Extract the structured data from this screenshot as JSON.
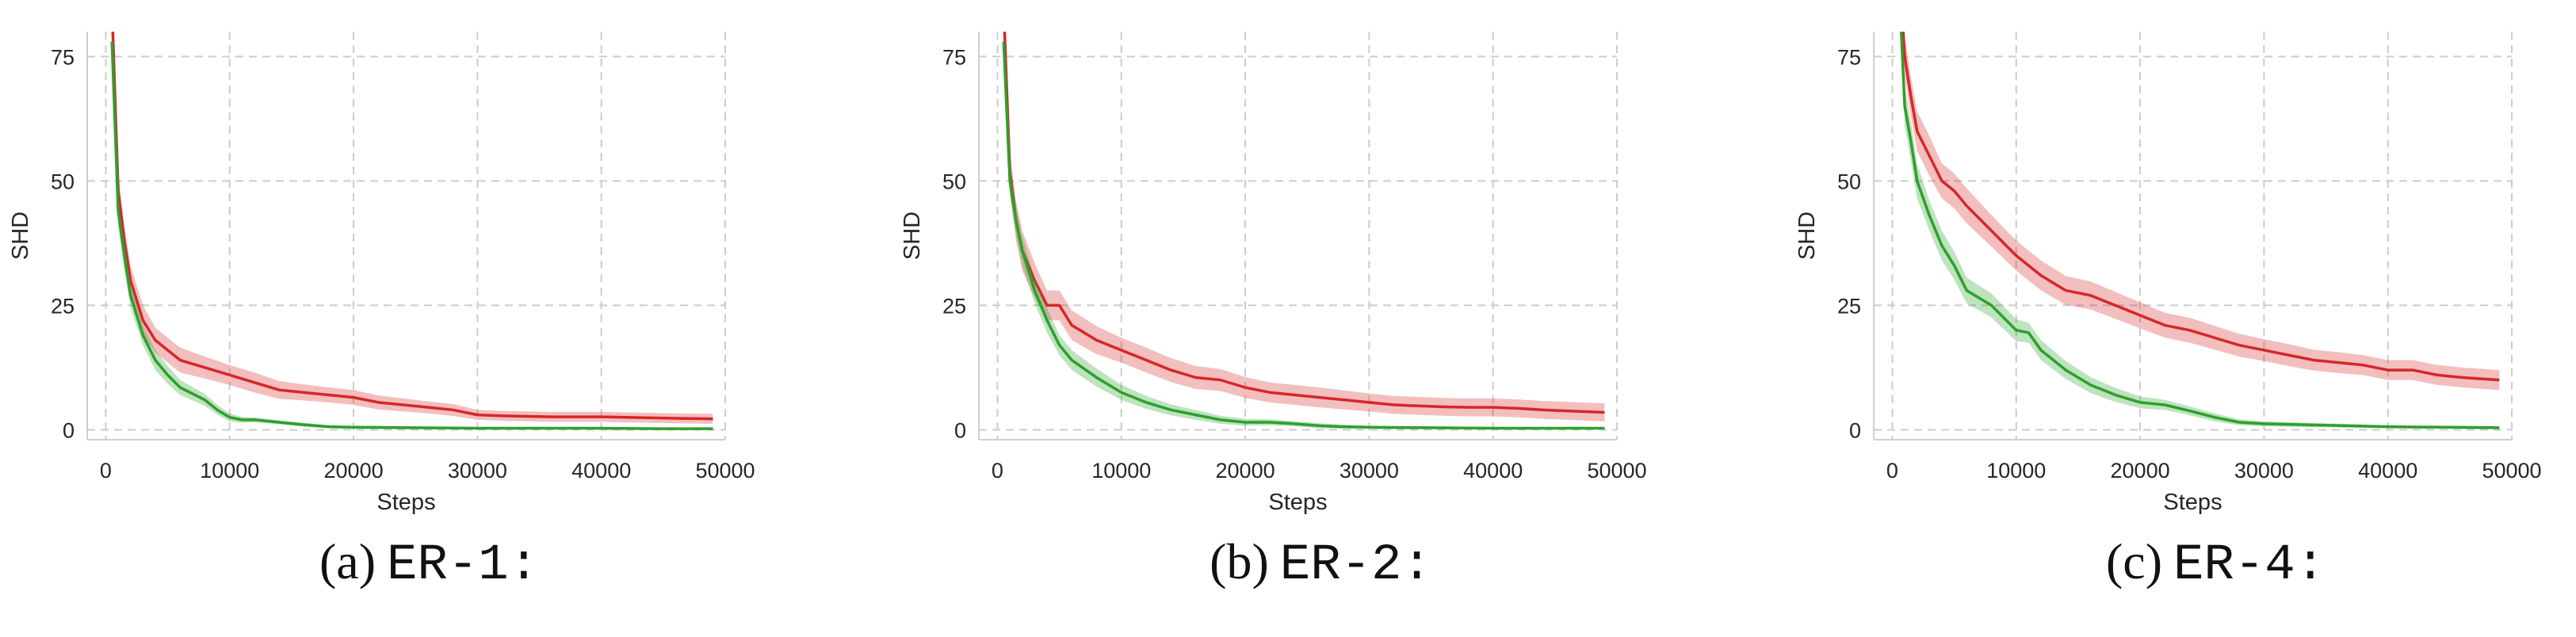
{
  "colors": {
    "method_a": "#d62728",
    "method_b": "#2ca02c",
    "grid": "#cccccc",
    "axis": "#cfcfcf"
  },
  "chart_data": [
    {
      "type": "line",
      "caption_label": "(a)",
      "caption_name": "ER-1:",
      "xlabel": "Steps",
      "ylabel": "SHD",
      "xlim": [
        -1500,
        50000
      ],
      "ylim": [
        -2,
        80
      ],
      "xticks": [
        0,
        10000,
        20000,
        30000,
        40000,
        50000
      ],
      "yticks": [
        0,
        25,
        50,
        75
      ],
      "grid": true,
      "series": [
        {
          "color": "#d62728",
          "x": [
            500,
            1000,
            1500,
            2000,
            3000,
            4000,
            5000,
            6000,
            8000,
            10000,
            12000,
            14000,
            16000,
            18000,
            20000,
            22000,
            24000,
            26000,
            28000,
            30000,
            32000,
            34000,
            36000,
            38000,
            40000,
            42000,
            44000,
            46000,
            49000
          ],
          "y": [
            85,
            48,
            38,
            30,
            22,
            18,
            16,
            14,
            12.5,
            11,
            9.5,
            8,
            7.5,
            7,
            6.5,
            5.5,
            5,
            4.5,
            4,
            3,
            2.8,
            2.7,
            2.6,
            2.6,
            2.6,
            2.5,
            2.4,
            2.3,
            2.2
          ],
          "band": [
            1,
            4,
            3,
            3,
            3,
            2.5,
            2.5,
            2.5,
            2.2,
            2,
            2,
            1.8,
            1.6,
            1.5,
            1.5,
            1.4,
            1.3,
            1.2,
            1.2,
            1,
            1,
            1,
            1,
            1,
            1,
            1,
            1,
            1,
            1
          ]
        },
        {
          "color": "#2ca02c",
          "x": [
            500,
            1000,
            1500,
            2000,
            3000,
            4000,
            5000,
            6000,
            8000,
            9000,
            10000,
            11000,
            12000,
            14000,
            16000,
            18000,
            20000,
            25000,
            30000,
            35000,
            40000,
            45000,
            49000
          ],
          "y": [
            78,
            44,
            35,
            27,
            19,
            14,
            11,
            8.5,
            6,
            4,
            2.5,
            2,
            2,
            1.5,
            1,
            0.6,
            0.5,
            0.4,
            0.3,
            0.3,
            0.3,
            0.2,
            0.2
          ],
          "band": [
            1,
            3,
            3,
            2.5,
            2,
            2,
            1.8,
            1.5,
            1.2,
            1,
            0.8,
            0.6,
            0.5,
            0.4,
            0.4,
            0.3,
            0.3,
            0.3,
            0.2,
            0.2,
            0.2,
            0.2,
            0.2
          ]
        }
      ]
    },
    {
      "type": "line",
      "caption_label": "(b)",
      "caption_name": "ER-2:",
      "xlabel": "Steps",
      "ylabel": "SHD",
      "xlim": [
        -1500,
        50000
      ],
      "ylim": [
        -2,
        80
      ],
      "xticks": [
        0,
        10000,
        20000,
        30000,
        40000,
        50000
      ],
      "yticks": [
        0,
        25,
        50,
        75
      ],
      "grid": true,
      "series": [
        {
          "color": "#d62728",
          "x": [
            500,
            1000,
            1500,
            2000,
            3000,
            4000,
            5000,
            6000,
            8000,
            10000,
            12000,
            14000,
            16000,
            18000,
            20000,
            22000,
            24000,
            26000,
            28000,
            30000,
            32000,
            34000,
            36000,
            38000,
            40000,
            42000,
            44000,
            46000,
            49000
          ],
          "y": [
            85,
            52,
            42,
            36,
            30,
            25,
            25,
            21,
            18,
            16,
            14,
            12,
            10.5,
            10,
            8.5,
            7.5,
            7,
            6.5,
            6,
            5.5,
            5,
            4.8,
            4.6,
            4.5,
            4.5,
            4.3,
            4,
            3.8,
            3.5
          ],
          "band": [
            1,
            4,
            4,
            4,
            3.5,
            3,
            3,
            3,
            2.8,
            2.5,
            2.5,
            2.4,
            2.3,
            2.2,
            2.1,
            2,
            2,
            2,
            1.9,
            1.8,
            1.8,
            1.8,
            1.8,
            1.8,
            1.8,
            1.8,
            1.8,
            1.8,
            1.8
          ]
        },
        {
          "color": "#2ca02c",
          "x": [
            500,
            1000,
            1500,
            2000,
            3000,
            4000,
            5000,
            6000,
            8000,
            10000,
            12000,
            14000,
            16000,
            18000,
            20000,
            22000,
            24000,
            26000,
            28000,
            30000,
            35000,
            40000,
            45000,
            49000
          ],
          "y": [
            78,
            50,
            42,
            36,
            28,
            22,
            17,
            14,
            10.5,
            7.5,
            5.5,
            4,
            3,
            2,
            1.5,
            1.5,
            1.2,
            0.8,
            0.6,
            0.5,
            0.4,
            0.3,
            0.3,
            0.3
          ],
          "band": [
            1,
            3,
            3,
            3,
            2.5,
            2.5,
            2,
            2,
            1.8,
            1.5,
            1.3,
            1.1,
            1,
            0.8,
            0.7,
            0.6,
            0.5,
            0.5,
            0.4,
            0.3,
            0.3,
            0.2,
            0.2,
            0.2
          ]
        }
      ]
    },
    {
      "type": "line",
      "caption_label": "(c)",
      "caption_name": "ER-4:",
      "xlabel": "Steps",
      "ylabel": "SHD",
      "xlim": [
        -1500,
        50000
      ],
      "ylim": [
        -2,
        80
      ],
      "xticks": [
        0,
        10000,
        20000,
        30000,
        40000,
        50000
      ],
      "yticks": [
        0,
        25,
        50,
        75
      ],
      "grid": true,
      "series": [
        {
          "color": "#d62728",
          "x": [
            500,
            1000,
            1500,
            2000,
            3000,
            4000,
            5000,
            6000,
            8000,
            10000,
            12000,
            14000,
            16000,
            18000,
            20000,
            22000,
            24000,
            26000,
            28000,
            30000,
            32000,
            34000,
            36000,
            38000,
            40000,
            42000,
            44000,
            46000,
            49000
          ],
          "y": [
            95,
            75,
            67,
            60,
            55,
            50,
            48,
            45,
            40,
            35,
            31,
            28,
            27,
            25,
            23,
            21,
            20,
            18.5,
            17,
            16,
            15,
            14,
            13.5,
            13,
            12,
            12,
            11,
            10.5,
            10
          ],
          "band": [
            1,
            4,
            4,
            4,
            4,
            3.5,
            3.5,
            3.5,
            3.2,
            3,
            3,
            2.9,
            2.8,
            2.7,
            2.6,
            2.5,
            2.5,
            2.4,
            2.3,
            2.2,
            2.2,
            2.1,
            2.1,
            2,
            2,
            2,
            2,
            2,
            2
          ]
        },
        {
          "color": "#2ca02c",
          "x": [
            500,
            1000,
            1500,
            2000,
            3000,
            4000,
            5000,
            6000,
            8000,
            10000,
            11000,
            12000,
            14000,
            16000,
            18000,
            20000,
            22000,
            24000,
            26000,
            28000,
            30000,
            35000,
            40000,
            45000,
            49000
          ],
          "y": [
            92,
            65,
            58,
            50,
            43,
            37,
            33,
            28,
            25,
            20,
            19.5,
            16,
            12,
            9,
            7,
            5.5,
            5,
            3.8,
            2.5,
            1.5,
            1.2,
            0.9,
            0.6,
            0.5,
            0.4
          ],
          "band": [
            1,
            4,
            4,
            3.5,
            3,
            3,
            2.8,
            2.6,
            2.4,
            2.2,
            2,
            2,
            1.8,
            1.6,
            1.4,
            1.2,
            1,
            0.9,
            0.8,
            0.6,
            0.5,
            0.4,
            0.3,
            0.3,
            0.3
          ]
        }
      ]
    }
  ]
}
